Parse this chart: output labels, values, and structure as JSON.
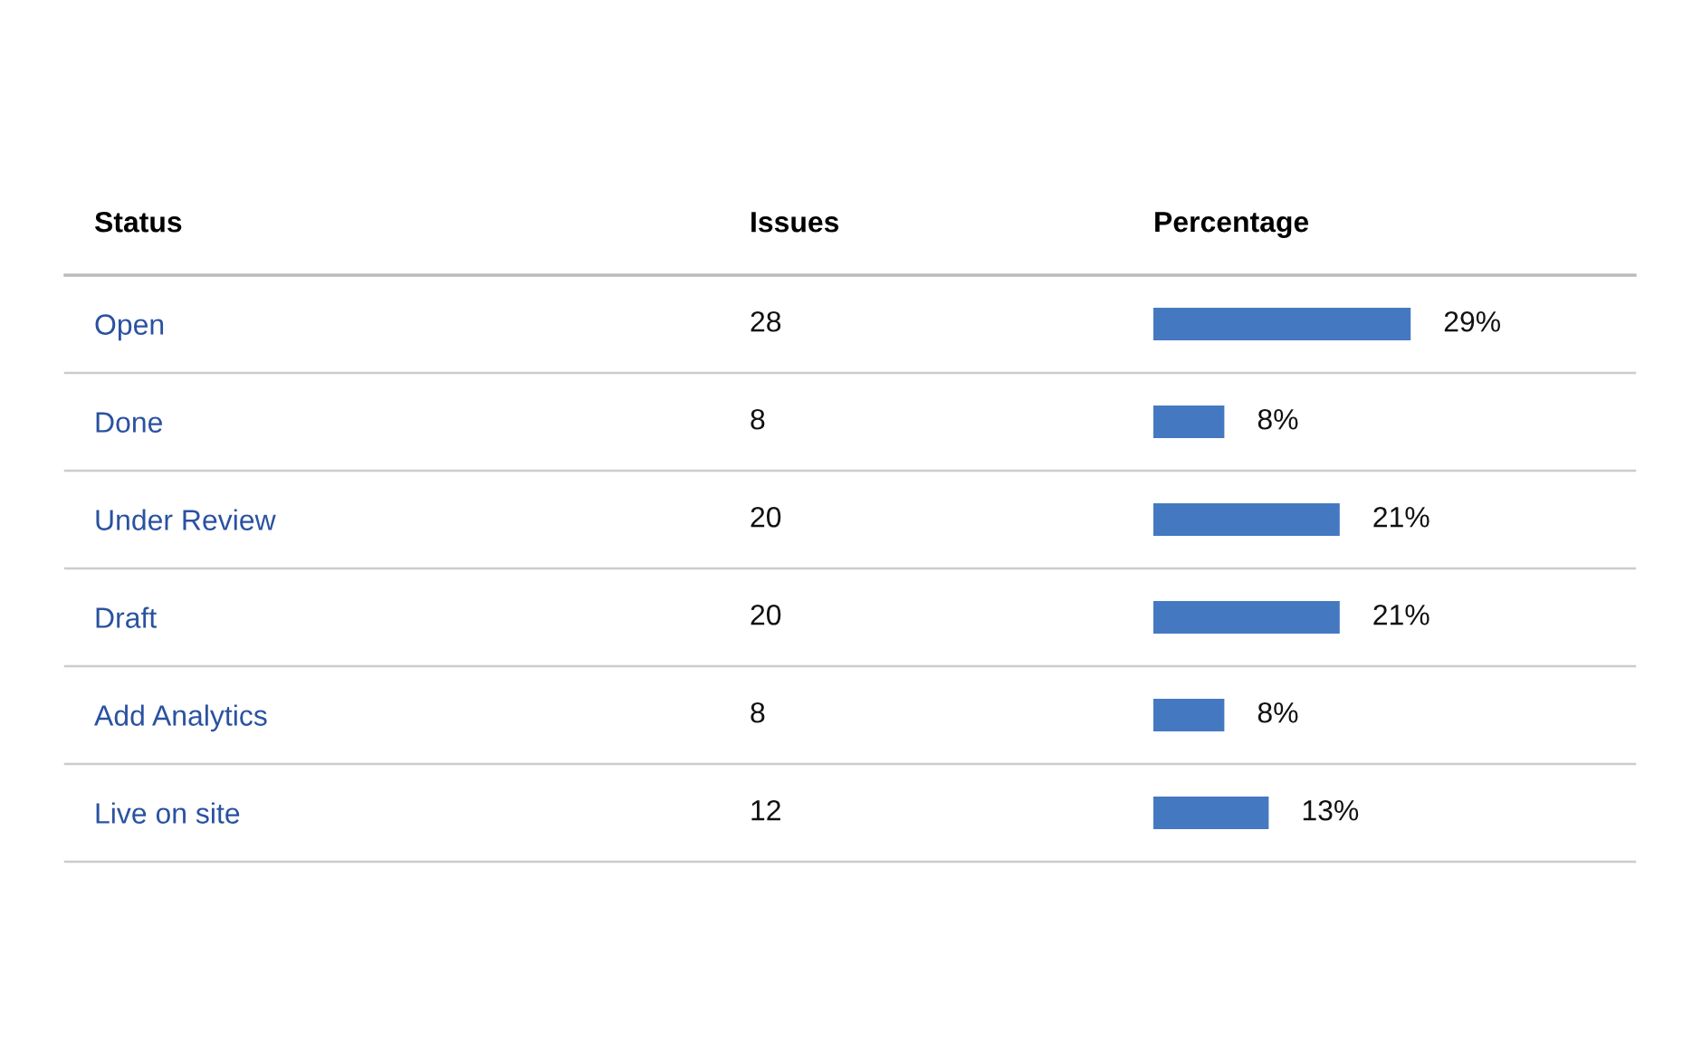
{
  "chart_data": {
    "type": "bar",
    "orientation": "horizontal",
    "title": "Percentage",
    "ylabel": "Status",
    "categories": [
      "Open",
      "Done",
      "Under Review",
      "Draft",
      "Add Analytics",
      "Live on site"
    ],
    "values": [
      29,
      8,
      21,
      21,
      8,
      13
    ],
    "color": "#4479c1",
    "value_labels": [
      "29%",
      "8%",
      "21%",
      "21%",
      "8%",
      "13%"
    ],
    "annotations": [
      "Issues",
      "28",
      "8",
      "20",
      "20",
      "8",
      "12"
    ]
  }
}
